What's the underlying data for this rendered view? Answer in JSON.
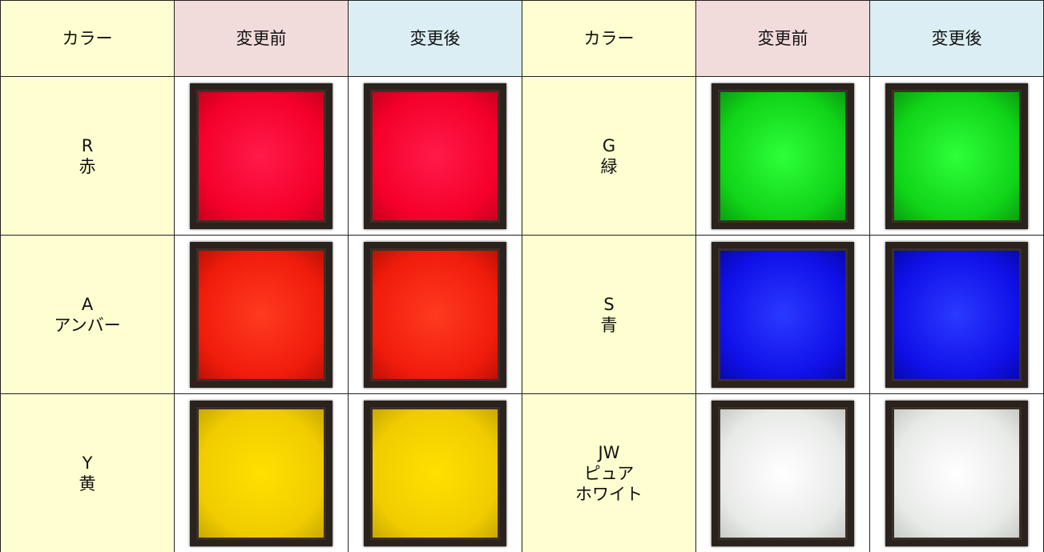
{
  "table": {
    "header": [
      "カラー",
      "変更前",
      "変更後",
      "カラー",
      "変更前",
      "変更後"
    ],
    "rows": [
      [
        [
          "R",
          "赤"
        ],
        [
          "G",
          "緑"
        ]
      ],
      [
        [
          "A",
          "アンバー"
        ],
        [
          "S",
          "青"
        ]
      ],
      [
        [
          "Y",
          "黄"
        ],
        [
          "JW",
          "ピュア",
          "ホワイト"
        ]
      ]
    ]
  }
}
